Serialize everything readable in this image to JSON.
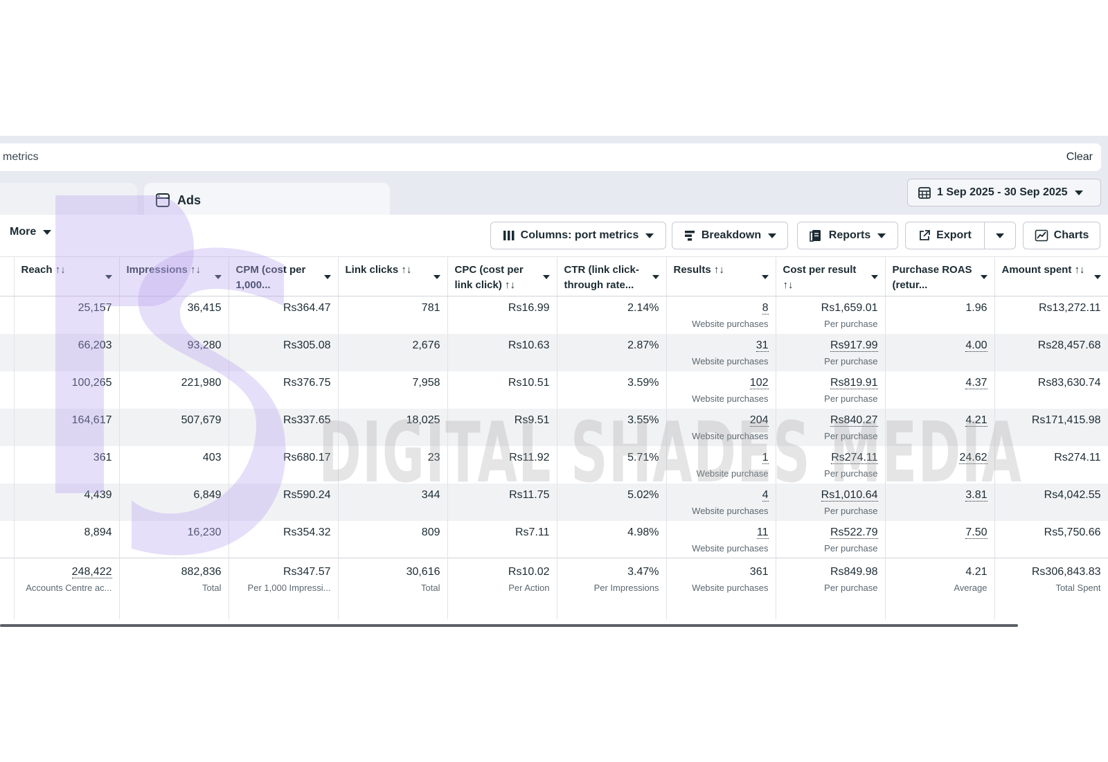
{
  "search": {
    "text": "metrics",
    "clear_label": "Clear"
  },
  "tabs": {
    "ads_label": "Ads"
  },
  "date_range": {
    "label": "1 Sep 2025 - 30 Sep 2025"
  },
  "toolbar": {
    "more_label": "More",
    "columns_label": "Columns: port metrics",
    "breakdown_label": "Breakdown",
    "reports_label": "Reports",
    "export_label": "Export",
    "charts_label": "Charts"
  },
  "table": {
    "headers": [
      {
        "label": "Reach ↑↓"
      },
      {
        "label": "Impressions ↑↓"
      },
      {
        "label": "CPM (cost per 1,000..."
      },
      {
        "label": "Link clicks ↑↓"
      },
      {
        "label": "CPC (cost per link click) ↑↓"
      },
      {
        "label": "CTR (link click-through rate..."
      },
      {
        "label": "Results ↑↓"
      },
      {
        "label": "Cost per result ↑↓"
      },
      {
        "label": "Purchase ROAS (retur..."
      },
      {
        "label": "Amount spent ↑↓"
      }
    ],
    "rows": [
      {
        "reach": "25,157",
        "impressions": "36,415",
        "cpm": "Rs364.47",
        "link_clicks": "781",
        "cpc": "Rs16.99",
        "ctr": "2.14%",
        "results": "8",
        "results_sub": "Website purchases",
        "cpr": "Rs1,659.01",
        "cpr_sub": "Per purchase",
        "roas": "1.96",
        "spent": "Rs13,272.11"
      },
      {
        "reach": "66,203",
        "impressions": "93,280",
        "cpm": "Rs305.08",
        "link_clicks": "2,676",
        "cpc": "Rs10.63",
        "ctr": "2.87%",
        "results": "31",
        "results_sub": "Website purchases",
        "cpr": "Rs917.99",
        "cpr_sub": "Per purchase",
        "roas": "4.00",
        "spent": "Rs28,457.68"
      },
      {
        "reach": "100,265",
        "impressions": "221,980",
        "cpm": "Rs376.75",
        "link_clicks": "7,958",
        "cpc": "Rs10.51",
        "ctr": "3.59%",
        "results": "102",
        "results_sub": "Website purchases",
        "cpr": "Rs819.91",
        "cpr_sub": "Per purchase",
        "roas": "4.37",
        "spent": "Rs83,630.74"
      },
      {
        "reach": "164,617",
        "impressions": "507,679",
        "cpm": "Rs337.65",
        "link_clicks": "18,025",
        "cpc": "Rs9.51",
        "ctr": "3.55%",
        "results": "204",
        "results_sub": "Website purchases",
        "cpr": "Rs840.27",
        "cpr_sub": "Per purchase",
        "roas": "4.21",
        "spent": "Rs171,415.98"
      },
      {
        "reach": "361",
        "impressions": "403",
        "cpm": "Rs680.17",
        "link_clicks": "23",
        "cpc": "Rs11.92",
        "ctr": "5.71%",
        "results": "1",
        "results_sub": "Website purchase",
        "cpr": "Rs274.11",
        "cpr_sub": "Per purchase",
        "roas": "24.62",
        "spent": "Rs274.11"
      },
      {
        "reach": "4,439",
        "impressions": "6,849",
        "cpm": "Rs590.24",
        "link_clicks": "344",
        "cpc": "Rs11.75",
        "ctr": "5.02%",
        "results": "4",
        "results_sub": "Website purchases",
        "cpr": "Rs1,010.64",
        "cpr_sub": "Per purchase",
        "roas": "3.81",
        "spent": "Rs4,042.55"
      },
      {
        "reach": "8,894",
        "impressions": "16,230",
        "cpm": "Rs354.32",
        "link_clicks": "809",
        "cpc": "Rs7.11",
        "ctr": "4.98%",
        "results": "11",
        "results_sub": "Website purchases",
        "cpr": "Rs522.79",
        "cpr_sub": "Per purchase",
        "roas": "7.50",
        "spent": "Rs5,750.66"
      }
    ],
    "totals": {
      "reach": "248,422",
      "reach_sub": "Accounts Centre ac...",
      "impressions": "882,836",
      "impressions_sub": "Total",
      "cpm": "Rs347.57",
      "cpm_sub": "Per 1,000 Impressi...",
      "link_clicks": "30,616",
      "link_clicks_sub": "Total",
      "cpc": "Rs10.02",
      "cpc_sub": "Per Action",
      "ctr": "3.47%",
      "ctr_sub": "Per Impressions",
      "results": "361",
      "results_sub": "Website purchases",
      "cpr": "Rs849.98",
      "cpr_sub": "Per purchase",
      "roas": "4.21",
      "roas_sub": "Average",
      "spent": "Rs306,843.83",
      "spent_sub": "Total Spent"
    }
  },
  "watermark": {
    "text": "DIGITAL SHADES MEDIA",
    "color": "#a0a0a0"
  },
  "colors": {
    "logo_purple": "#c9b8f5",
    "panel_bg": "#e8eaf1"
  }
}
